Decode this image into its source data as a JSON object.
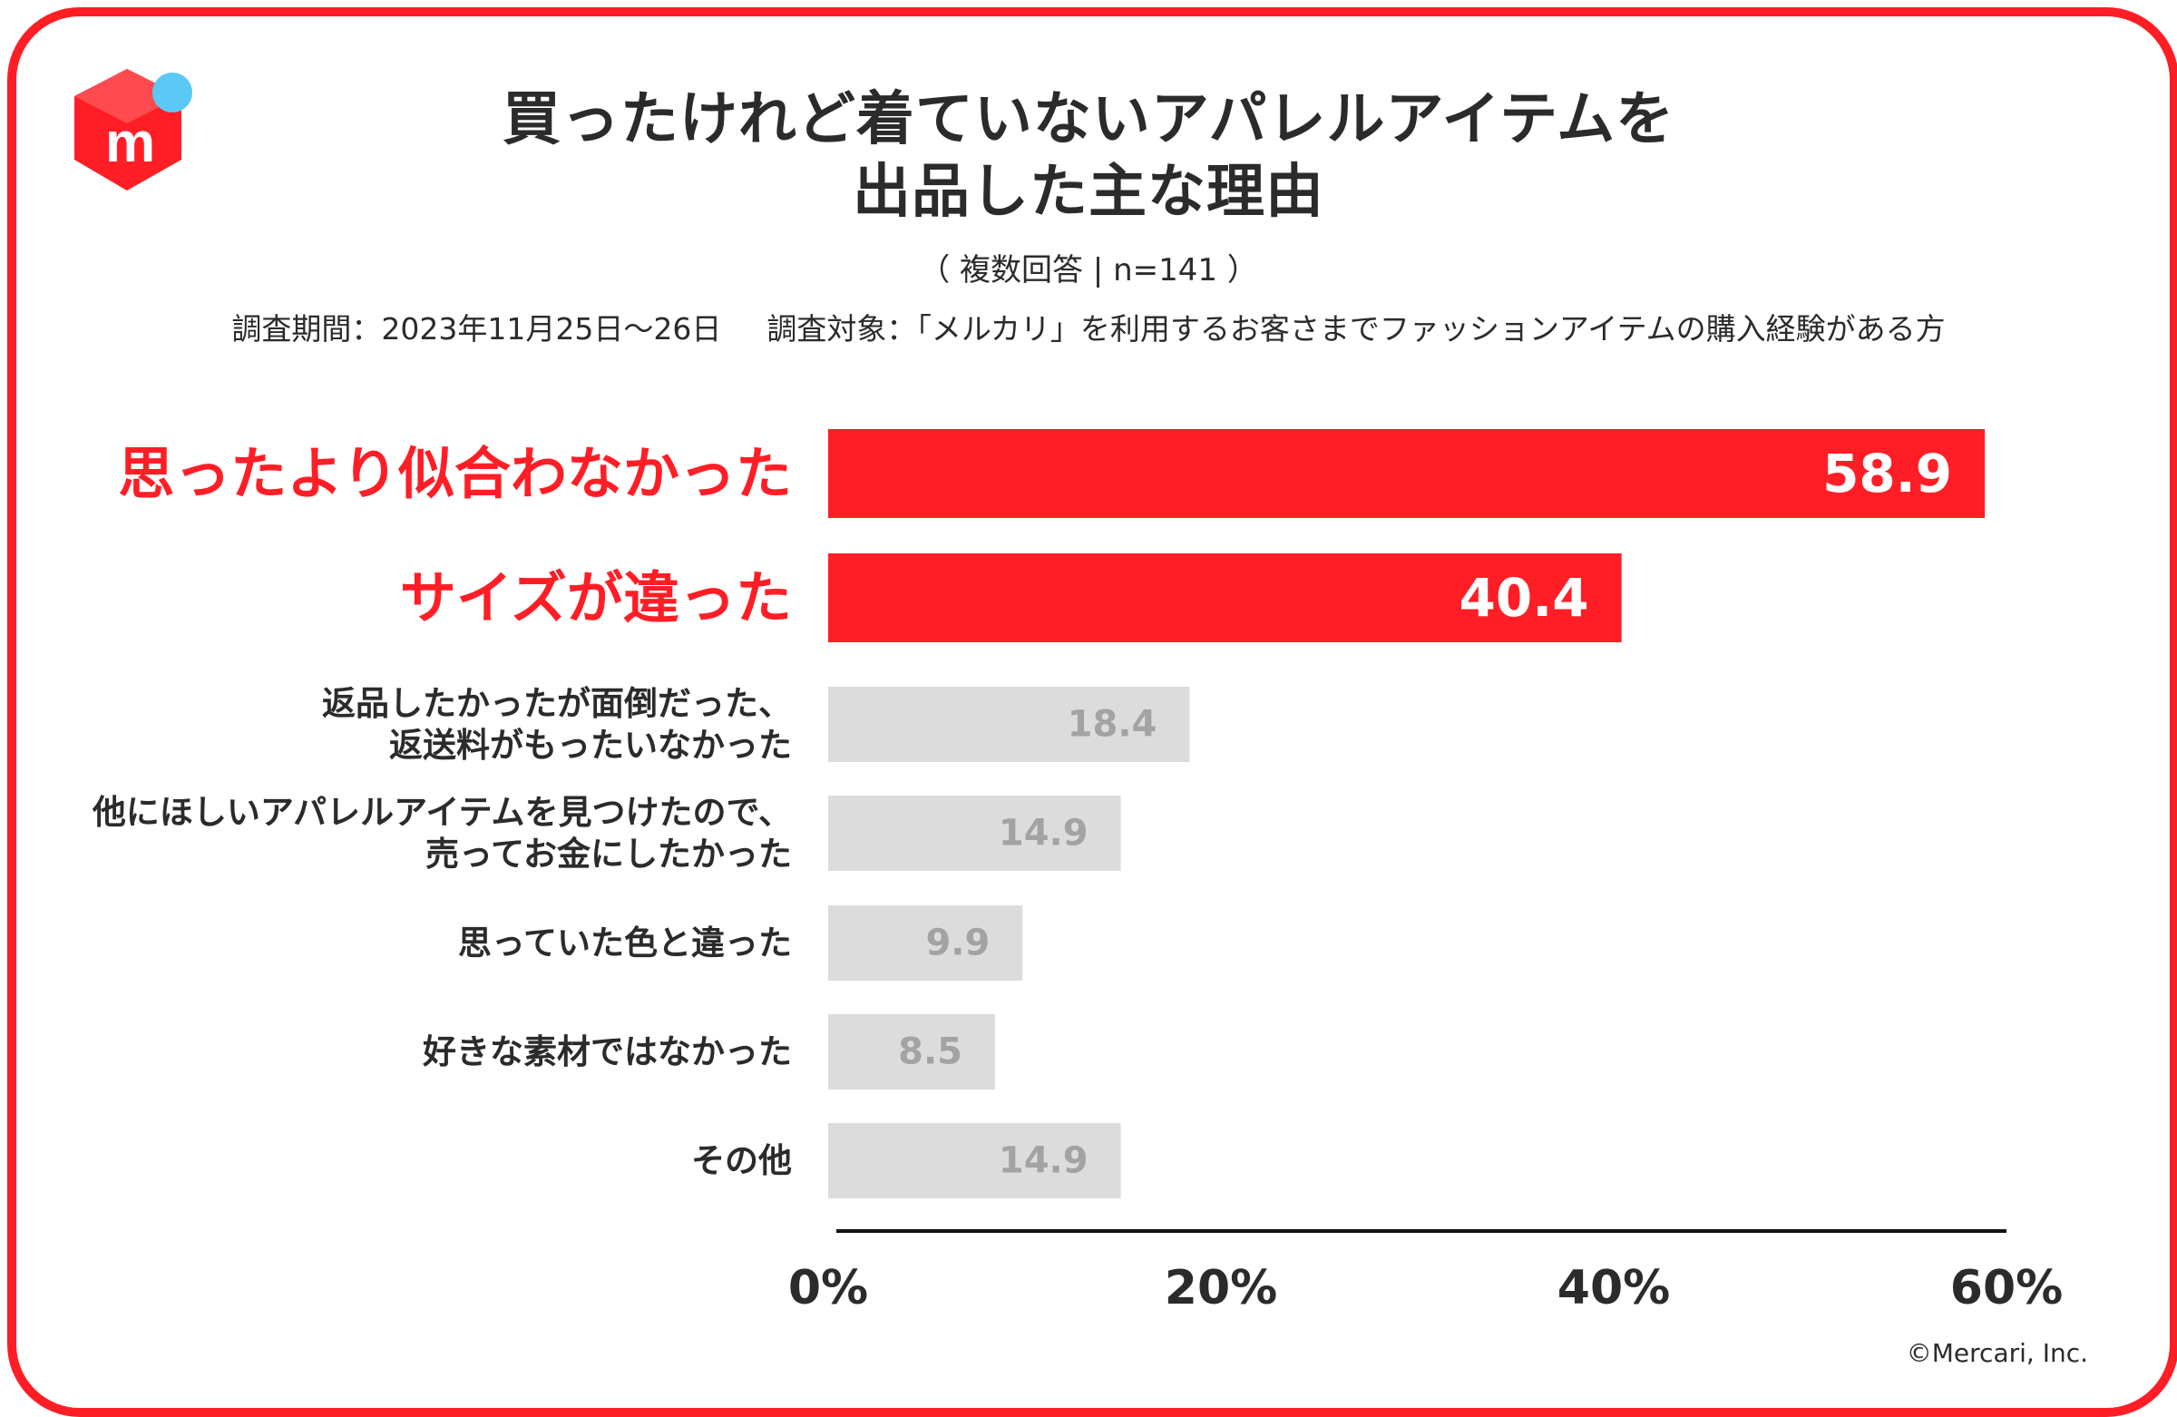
{
  "title_line1": "買ったけれど着ていないアパレルアイテムを",
  "title_line2": "出品した主な理由",
  "subtitle": "（ 複数回答 | n=141 ）",
  "period": "調査期間：2023年11月25日～26日",
  "target": "調査対象：「メルカリ」を利用するお客さまでファッションアイテムの購入経験がある方",
  "copyright": "©Mercari, Inc.",
  "logo_letter": "m",
  "colors": {
    "accent": "#ff1e26",
    "bar_muted": "#dcdcdc",
    "value_muted": "#a3a3a3",
    "text": "#2b2b2b",
    "logo_dot": "#5bc8f5"
  },
  "chart_data": {
    "type": "bar",
    "orientation": "horizontal",
    "categories": [
      [
        "思ったより似合わなかった"
      ],
      [
        "サイズが違った"
      ],
      [
        "返品したかったが面倒だった、",
        "返送料がもったいなかった"
      ],
      [
        "他にほしいアパレルアイテムを見つけたので、",
        "売ってお金にしたかった"
      ],
      [
        "思っていた色と違った"
      ],
      [
        "好きな素材ではなかった"
      ],
      [
        "その他"
      ]
    ],
    "values": [
      58.9,
      40.4,
      18.4,
      14.9,
      9.9,
      8.5,
      14.9
    ],
    "highlighted": [
      true,
      true,
      false,
      false,
      false,
      false,
      false
    ],
    "value_labels": [
      "58.9",
      "40.4",
      "18.4",
      "14.9",
      "9.9",
      "8.5",
      "14.9"
    ],
    "xlim": [
      0,
      60
    ],
    "xticks": [
      0,
      20,
      40,
      60
    ],
    "xtick_labels": [
      "0%",
      "20%",
      "40%",
      "60%"
    ],
    "unit": "%",
    "grid": false
  }
}
